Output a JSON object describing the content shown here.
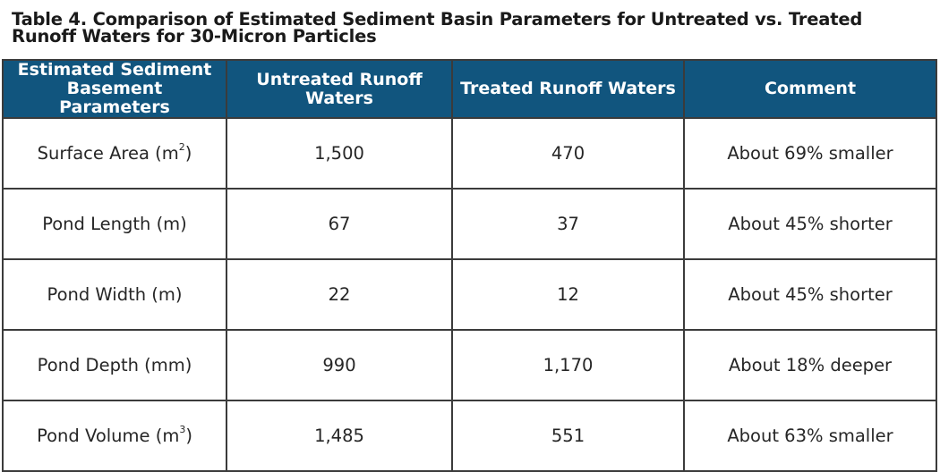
{
  "caption": {
    "line1": "Table 4. Comparison of Estimated Sediment Basin Parameters for Untreated vs. Treated",
    "line2": "Runoff Waters for 30-Micron Particles"
  },
  "table": {
    "headers": [
      {
        "line1": "Estimated Sediment",
        "line2": "Basement Parameters"
      },
      {
        "line1": "Untreated Runoff",
        "line2": "Waters"
      },
      {
        "line1": "Treated Runoff Waters",
        "line2": ""
      },
      {
        "line1": "Comment",
        "line2": ""
      }
    ],
    "rows": [
      {
        "param": "Surface Area (m",
        "unit_sup": "2",
        "param_tail": ")",
        "untreated": "1,500",
        "treated": "470",
        "comment": "About 69% smaller"
      },
      {
        "param": "Pond Length (m)",
        "unit_sup": "",
        "param_tail": "",
        "untreated": "67",
        "treated": "37",
        "comment": "About 45% shorter"
      },
      {
        "param": "Pond Width (m)",
        "unit_sup": "",
        "param_tail": "",
        "untreated": "22",
        "treated": "12",
        "comment": "About 45% shorter"
      },
      {
        "param": "Pond Depth (mm)",
        "unit_sup": "",
        "param_tail": "",
        "untreated": "990",
        "treated": "1,170",
        "comment": "About 18% deeper"
      },
      {
        "param": "Pond Volume (m",
        "unit_sup": "3",
        "param_tail": ")",
        "untreated": "1,485",
        "treated": "551",
        "comment": "About 63% smaller"
      }
    ]
  },
  "colors": {
    "header_background": "#11557e",
    "header_text": "#ffffff",
    "border": "#3b3b3b"
  }
}
